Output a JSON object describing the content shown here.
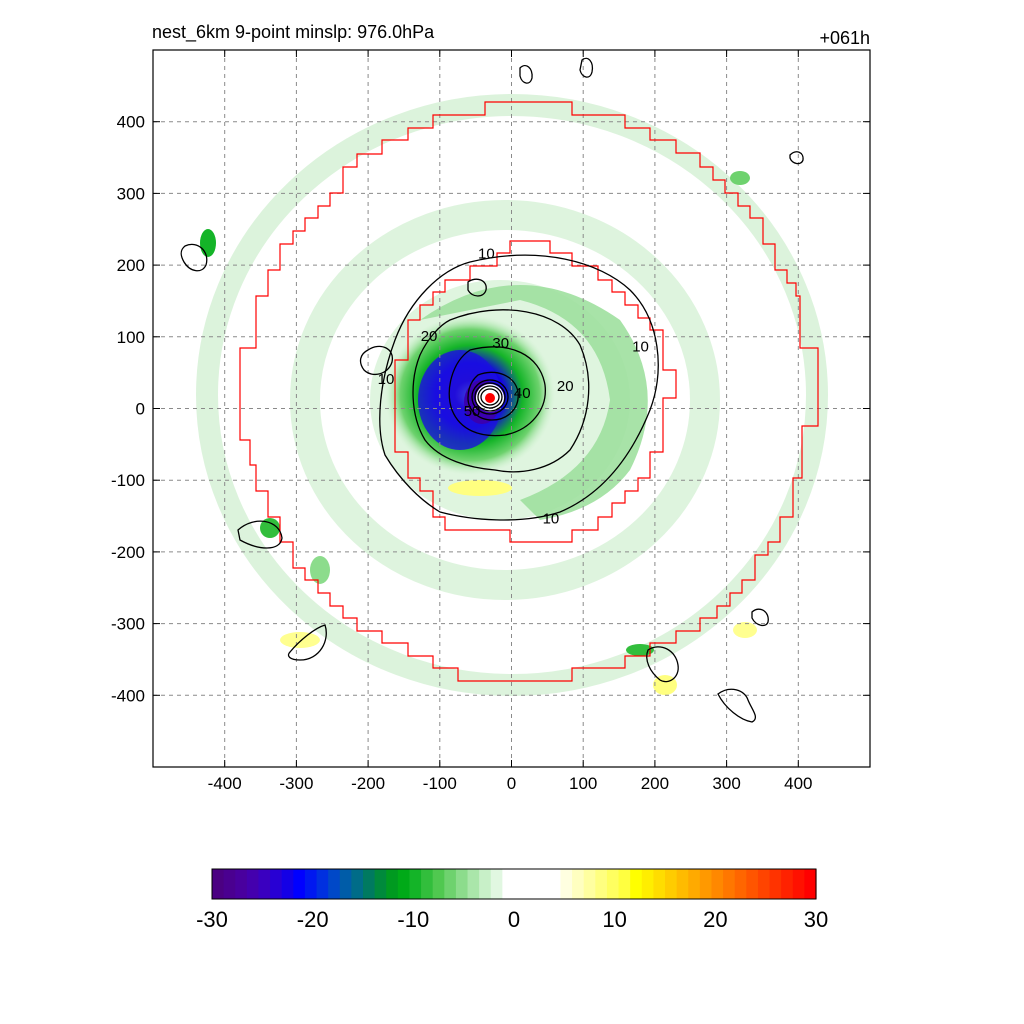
{
  "header": {
    "title": "nest_6km  9-point minslp: 976.0hPa",
    "forecast_hour": "+061h"
  },
  "chart_data": {
    "type": "heatmap",
    "title": "nest_6km  9-point minslp: 976.0hPa",
    "xlabel": "",
    "ylabel": "",
    "xlim": [
      -500,
      500
    ],
    "ylim": [
      -500,
      500
    ],
    "x_ticks": [
      -400,
      -300,
      -200,
      -100,
      0,
      100,
      200,
      300,
      400
    ],
    "y_ticks": [
      400,
      300,
      200,
      100,
      0,
      -100,
      -200,
      -300,
      -400
    ],
    "grid": true,
    "center": [
      -30,
      15
    ],
    "contour_labels": [
      {
        "text": "10",
        "x": -35,
        "y": 215
      },
      {
        "text": "10",
        "x": 180,
        "y": 85
      },
      {
        "text": "10",
        "x": -175,
        "y": 40
      },
      {
        "text": "10",
        "x": 55,
        "y": -155
      },
      {
        "text": "20",
        "x": -115,
        "y": 100
      },
      {
        "text": "20",
        "x": 75,
        "y": 30
      },
      {
        "text": "30",
        "x": -15,
        "y": 90
      },
      {
        "text": "40",
        "x": 15,
        "y": 20
      },
      {
        "text": "50",
        "x": -55,
        "y": -5
      }
    ],
    "colorbar": {
      "min": -30,
      "max": 30,
      "tick_labels": [
        "-30",
        "-20",
        "-10",
        "0",
        "10",
        "20",
        "30"
      ],
      "colors": [
        "#4b0082",
        "#4a0090",
        "#49009e",
        "#4400ae",
        "#3a00c0",
        "#2800d4",
        "#1400e6",
        "#0000ff",
        "#0018f0",
        "#0030e0",
        "#0048c8",
        "#005ca8",
        "#006c88",
        "#007a60",
        "#008a3c",
        "#009a20",
        "#00aa18",
        "#14b428",
        "#32be3c",
        "#50c850",
        "#6ed26e",
        "#8cdc8c",
        "#aae6aa",
        "#c8f0c8",
        "#e1f7e1",
        "#ffffff",
        "#ffffff",
        "#ffffff",
        "#ffffff",
        "#ffffff",
        "#ffffe0",
        "#ffffc0",
        "#ffffa0",
        "#ffff80",
        "#ffff60",
        "#ffff40",
        "#ffff00",
        "#ffee00",
        "#ffdd00",
        "#ffcc00",
        "#ffbb00",
        "#ffaa00",
        "#ff9900",
        "#ff8800",
        "#ff7700",
        "#ff6600",
        "#ff5500",
        "#ff4400",
        "#ff3300",
        "#ff2200",
        "#ff1100",
        "#ff0000"
      ]
    }
  }
}
